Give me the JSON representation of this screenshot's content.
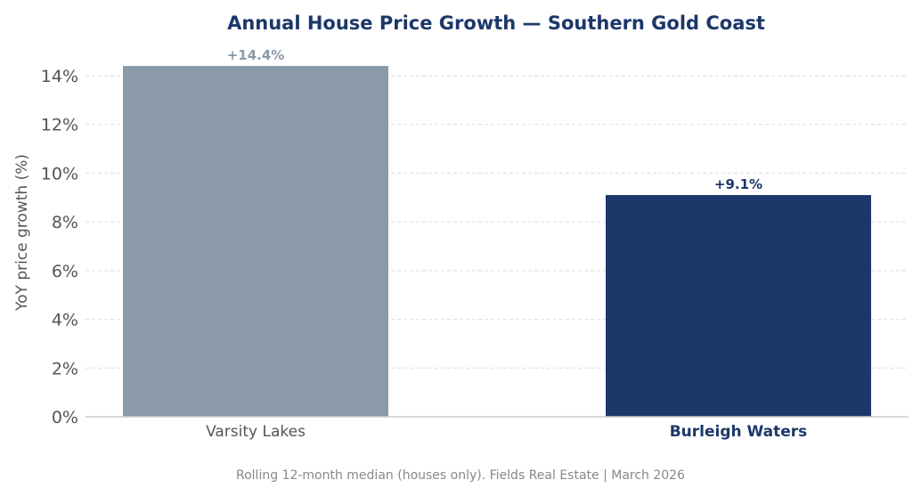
{
  "chart_data": {
    "type": "bar",
    "title": "Annual House Price Growth — Southern Gold Coast",
    "xlabel": "",
    "ylabel": "YoY price growth (%)",
    "ylim": [
      0,
      14.8
    ],
    "yticks": [
      0,
      2,
      4,
      6,
      8,
      10,
      12,
      14
    ],
    "ytick_labels": [
      "0%",
      "2%",
      "4%",
      "6%",
      "8%",
      "10%",
      "12%",
      "14%"
    ],
    "grid": "horizontal dashed",
    "categories": [
      "Varsity Lakes",
      "Burleigh Waters"
    ],
    "values": [
      14.4,
      9.1
    ],
    "data_labels": [
      "+14.4%",
      "+9.1%"
    ],
    "colors": [
      "#8a9aa8",
      "#1c3769"
    ],
    "highlighted_category": "Burleigh Waters",
    "footnote": "Rolling 12-month median (houses only). Fields Real Estate | March 2026"
  }
}
